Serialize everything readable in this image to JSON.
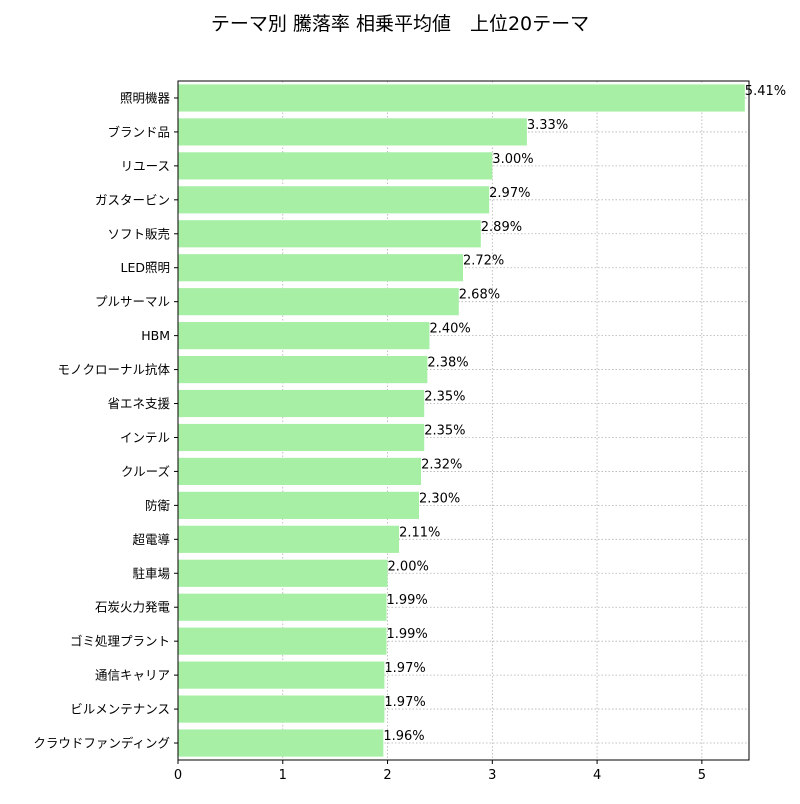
{
  "chart_data": {
    "type": "bar",
    "orientation": "horizontal",
    "title": "テーマ別 騰落率 相乗平均値　上位20テーマ",
    "xlabel": "",
    "ylabel": "",
    "xlim": [
      0,
      5.45
    ],
    "x_ticks": [
      0,
      1,
      2,
      3,
      4,
      5
    ],
    "grid": true,
    "bar_color": "#a6efa4",
    "categories": [
      "照明機器",
      "ブランド品",
      "リユース",
      "ガスタービン",
      "ソフト販売",
      "LED照明",
      "プルサーマル",
      "HBM",
      "モノクローナル抗体",
      "省エネ支援",
      "インテル",
      "クルーズ",
      "防衛",
      "超電導",
      "駐車場",
      "石炭火力発電",
      "ゴミ処理プラント",
      "通信キャリア",
      "ビルメンテナンス",
      "クラウドファンディング"
    ],
    "values": [
      5.41,
      3.33,
      3.0,
      2.97,
      2.89,
      2.72,
      2.68,
      2.4,
      2.38,
      2.35,
      2.35,
      2.32,
      2.3,
      2.11,
      2.0,
      1.99,
      1.99,
      1.97,
      1.97,
      1.96
    ],
    "data_labels": [
      "5.41%",
      "3.33%",
      "3.00%",
      "2.97%",
      "2.89%",
      "2.72%",
      "2.68%",
      "2.40%",
      "2.38%",
      "2.35%",
      "2.35%",
      "2.32%",
      "2.30%",
      "2.11%",
      "2.00%",
      "1.99%",
      "1.99%",
      "1.97%",
      "1.97%",
      "1.96%"
    ]
  }
}
